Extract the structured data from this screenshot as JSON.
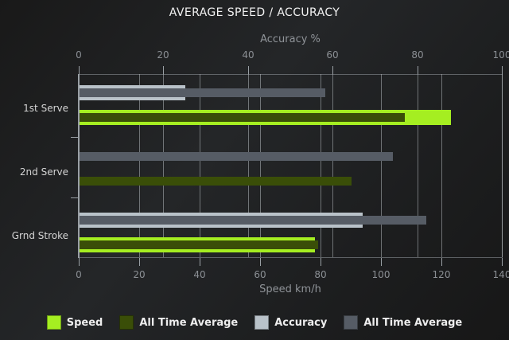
{
  "title": "AVERAGE SPEED / ACCURACY",
  "chart_data": {
    "type": "bar",
    "orientation": "horizontal",
    "title": "AVERAGE SPEED / ACCURACY",
    "categories": [
      "1st Serve",
      "2nd Serve",
      "Grnd Stroke"
    ],
    "axes": {
      "top": {
        "label": "Accuracy %",
        "min": 0,
        "max": 100,
        "ticks": [
          0,
          20,
          40,
          60,
          80,
          100
        ]
      },
      "bottom": {
        "label": "Speed km/h",
        "min": 0,
        "max": 140,
        "ticks": [
          0,
          20,
          40,
          60,
          80,
          100,
          120,
          140
        ]
      }
    },
    "series": [
      {
        "name": "Speed",
        "group": "speed",
        "role": "main",
        "axis": "bottom",
        "color": "#a5ee21",
        "values": [
          123,
          null,
          78
        ]
      },
      {
        "name": "All Time Average",
        "group": "speed",
        "role": "overlay",
        "axis": "bottom",
        "color": "#3a4e08",
        "values": [
          107.5,
          90,
          79
        ]
      },
      {
        "name": "Accuracy",
        "group": "accuracy",
        "role": "main",
        "axis": "top",
        "color": "#b9c2c9",
        "values": [
          25,
          null,
          67
        ]
      },
      {
        "name": "All Time Average",
        "group": "accuracy",
        "role": "overlay",
        "axis": "top",
        "color": "#565c65",
        "values": [
          58,
          74,
          82
        ]
      }
    ],
    "grid": true,
    "legend_position": "bottom",
    "colors": {
      "background": "#1e1f20",
      "grid": "#c6ccd2",
      "axis": "#9aa0a5",
      "title_text": "#f2f2f2",
      "tick_text": "#8b8f94",
      "category_text": "#d4d4d4",
      "legend_text": "#ededed"
    }
  }
}
